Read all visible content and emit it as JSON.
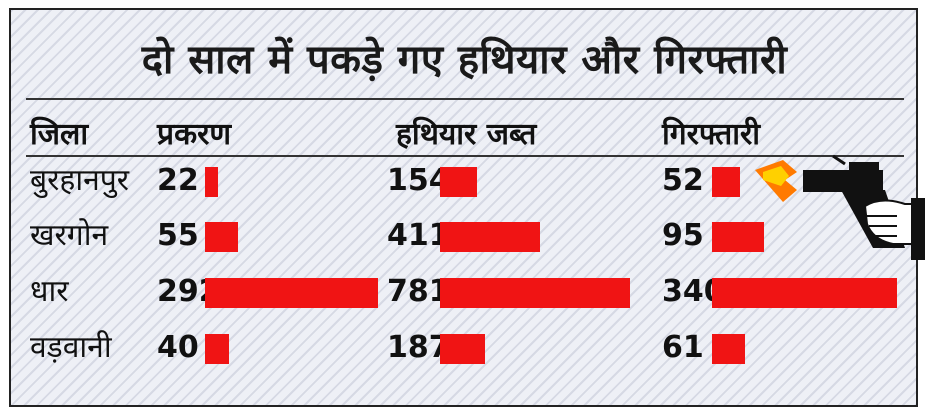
{
  "title": "दो साल में पकड़े गए हथियार और गिरफ्तारी",
  "colors": {
    "bar": "#f01414",
    "text": "#111111"
  },
  "icon": "pistol-hand-icon",
  "chart_data": {
    "type": "bar",
    "title": "दो साल में पकड़े गए हथियार और गिरफ्तारी",
    "category_header": "जिला",
    "categories": [
      "बुरहानपुर",
      "खरगोन",
      "धार",
      "वड़वानी"
    ],
    "series": [
      {
        "name": "प्रकरण",
        "values": [
          22,
          55,
          292,
          40
        ]
      },
      {
        "name": "हथियार जब्त",
        "values": [
          154,
          411,
          781,
          187
        ]
      },
      {
        "name": "गिरफ्तारी",
        "values": [
          52,
          95,
          340,
          61
        ]
      }
    ]
  }
}
